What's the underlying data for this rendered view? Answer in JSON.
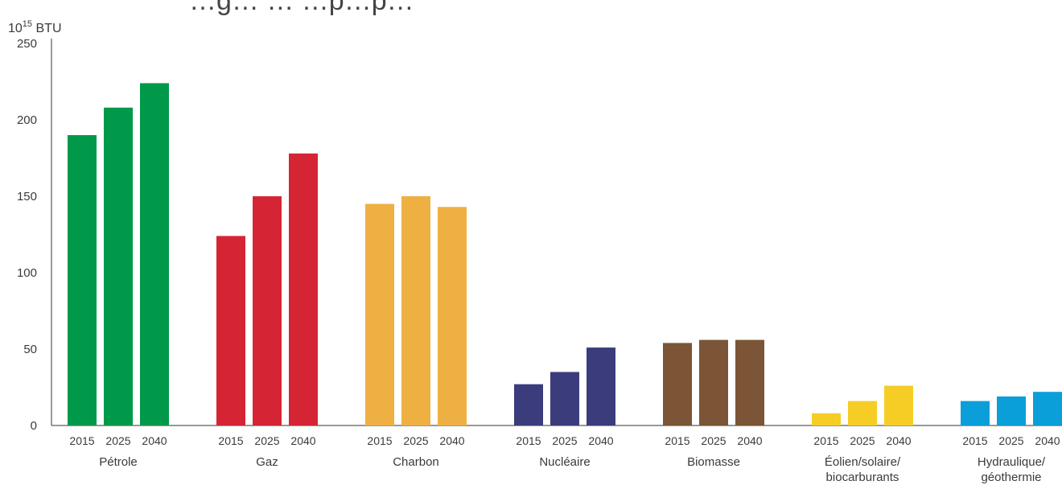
{
  "chart_data": {
    "type": "bar",
    "title": "…g… … …p…p…",
    "unit_base": "10",
    "unit_exponent": "15",
    "unit_suffix": " BTU",
    "ylim": [
      0,
      250
    ],
    "yticks": [
      0,
      50,
      100,
      150,
      200,
      250
    ],
    "grid": false,
    "legend": "none",
    "series_years": [
      "2015",
      "2025",
      "2040"
    ],
    "categories": [
      {
        "label_lines": [
          "Pétrole"
        ],
        "color": "#00994a",
        "values": [
          190,
          208,
          224
        ]
      },
      {
        "label_lines": [
          "Gaz"
        ],
        "color": "#d52535",
        "values": [
          124,
          150,
          178
        ]
      },
      {
        "label_lines": [
          "Charbon"
        ],
        "color": "#efb043",
        "values": [
          145,
          150,
          143
        ]
      },
      {
        "label_lines": [
          "Nucléaire"
        ],
        "color": "#3b3c7c",
        "values": [
          27,
          35,
          51
        ]
      },
      {
        "label_lines": [
          "Biomasse"
        ],
        "color": "#7b5535",
        "values": [
          54,
          56,
          56
        ]
      },
      {
        "label_lines": [
          "Éolien/solaire/",
          "biocarburants"
        ],
        "color": "#f6cd25",
        "values": [
          8,
          16,
          26
        ]
      },
      {
        "label_lines": [
          "Hydraulique/",
          "géothermie"
        ],
        "color": "#0b9fd9",
        "values": [
          16,
          19,
          22
        ]
      }
    ]
  }
}
